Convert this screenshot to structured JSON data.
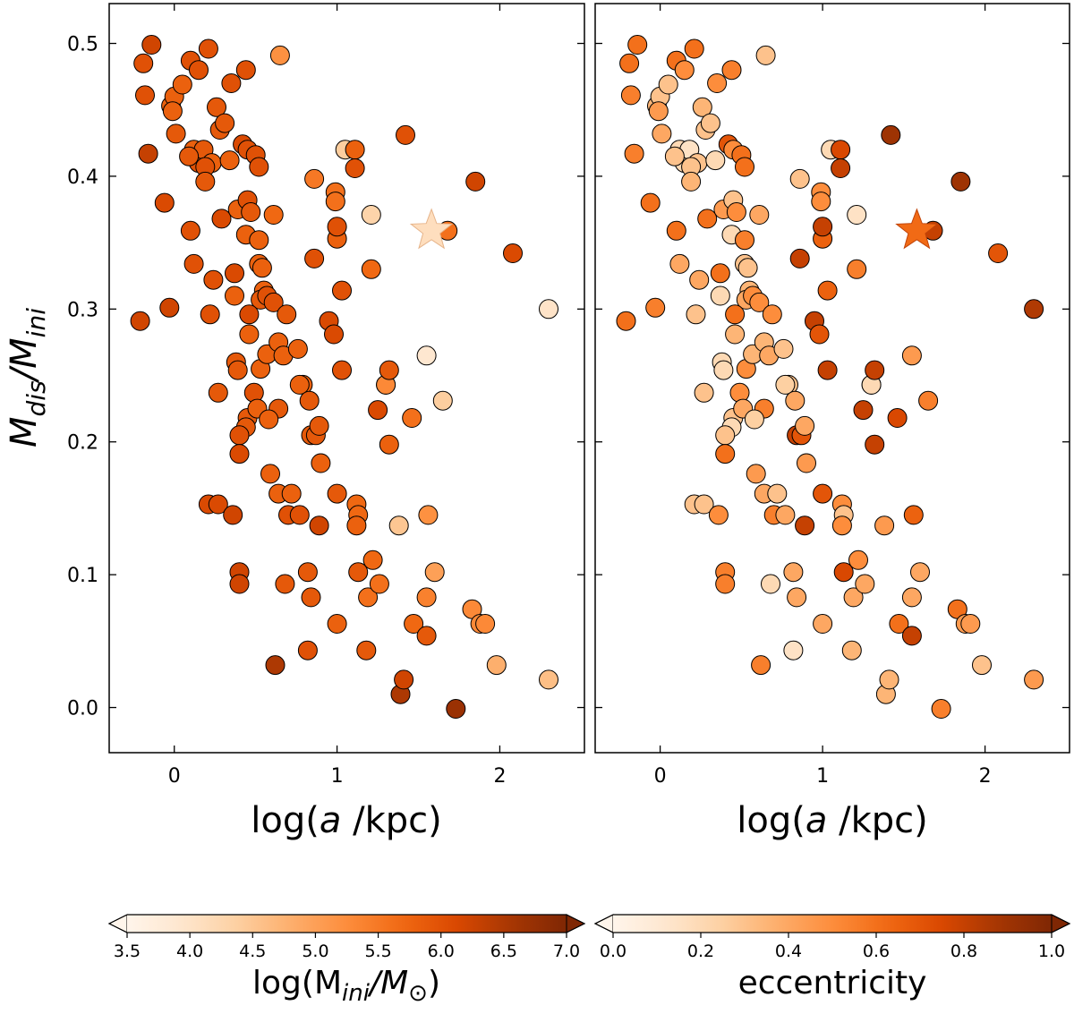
{
  "chart_data": {
    "type": "scatter",
    "xlabel": "log(a /kpc)",
    "ylabel": "M_dis/M_ini",
    "xlim": [
      -0.4,
      2.52
    ],
    "ylim": [
      -0.034,
      0.53
    ],
    "x_ticks": [
      "0",
      "1",
      "2"
    ],
    "y_ticks": [
      "0.0",
      "0.1",
      "0.2",
      "0.3",
      "0.4",
      "0.5"
    ],
    "panels": [
      {
        "name": "left",
        "color_by": "log(M_ini/M_sun)",
        "colorbar_label_main": "log(M",
        "colorbar_label_sub1": "ini",
        "colorbar_label_mid": "/M",
        "colorbar_label_sub2": "⊙",
        "colorbar_label_end": ")",
        "cmin": 3.5,
        "cmax": 7.0,
        "colorbar_ticks": [
          "3.5",
          "4.0",
          "4.5",
          "5.0",
          "5.5",
          "6.0",
          "6.5",
          "7.0"
        ],
        "colorbar_tick_values": [
          3.5,
          4.0,
          4.5,
          5.0,
          5.5,
          6.0,
          6.5,
          7.0
        ],
        "star_color_value": 4.1
      },
      {
        "name": "right",
        "color_by": "eccentricity",
        "colorbar_label": "eccentricity",
        "cmin": 0.0,
        "cmax": 1.0,
        "colorbar_ticks": [
          "0.0",
          "0.2",
          "0.4",
          "0.6",
          "0.8",
          "1.0"
        ],
        "colorbar_tick_values": [
          0.0,
          0.2,
          0.4,
          0.6,
          0.8,
          1.0
        ],
        "star_color_value": 0.62
      }
    ],
    "star_point": {
      "x": 1.58,
      "y": 0.359
    },
    "points": [
      [
        -0.14,
        0.499,
        6.2,
        0.6
      ],
      [
        -0.19,
        0.485,
        6.0,
        0.6
      ],
      [
        -0.18,
        0.461,
        6.0,
        0.55
      ],
      [
        -0.16,
        0.417,
        6.3,
        0.55
      ],
      [
        -0.06,
        0.38,
        6.1,
        0.6
      ],
      [
        -0.03,
        0.301,
        6.2,
        0.55
      ],
      [
        -0.21,
        0.291,
        6.2,
        0.6
      ],
      [
        -0.02,
        0.453,
        5.8,
        0.35
      ],
      [
        0.0,
        0.46,
        5.8,
        0.3
      ],
      [
        -0.01,
        0.449,
        5.8,
        0.45
      ],
      [
        0.05,
        0.469,
        5.8,
        0.3
      ],
      [
        0.01,
        0.432,
        5.9,
        0.4
      ],
      [
        0.1,
        0.487,
        6.0,
        0.6
      ],
      [
        0.15,
        0.48,
        6.0,
        0.5
      ],
      [
        0.21,
        0.496,
        6.0,
        0.6
      ],
      [
        0.12,
        0.42,
        5.8,
        0.2
      ],
      [
        0.15,
        0.41,
        6.0,
        0.2
      ],
      [
        0.18,
        0.42,
        5.9,
        0.15
      ],
      [
        0.09,
        0.415,
        5.9,
        0.3
      ],
      [
        0.23,
        0.41,
        5.8,
        0.3
      ],
      [
        0.19,
        0.407,
        6.0,
        0.3
      ],
      [
        0.28,
        0.435,
        5.9,
        0.3
      ],
      [
        0.26,
        0.452,
        5.9,
        0.35
      ],
      [
        0.31,
        0.44,
        5.9,
        0.3
      ],
      [
        0.19,
        0.396,
        5.9,
        0.35
      ],
      [
        0.34,
        0.412,
        5.8,
        0.2
      ],
      [
        0.35,
        0.47,
        6.0,
        0.5
      ],
      [
        0.44,
        0.48,
        6.0,
        0.55
      ],
      [
        0.1,
        0.359,
        6.0,
        0.6
      ],
      [
        0.12,
        0.334,
        6.0,
        0.4
      ],
      [
        0.24,
        0.322,
        6.0,
        0.4
      ],
      [
        0.22,
        0.296,
        6.0,
        0.3
      ],
      [
        0.29,
        0.368,
        6.1,
        0.6
      ],
      [
        0.39,
        0.375,
        5.8,
        0.45
      ],
      [
        0.37,
        0.327,
        6.1,
        0.6
      ],
      [
        0.37,
        0.31,
        5.8,
        0.2
      ],
      [
        0.42,
        0.424,
        6.1,
        0.7
      ],
      [
        0.45,
        0.42,
        6.0,
        0.5
      ],
      [
        0.5,
        0.416,
        6.0,
        0.6
      ],
      [
        0.52,
        0.407,
        6.0,
        0.6
      ],
      [
        0.45,
        0.382,
        6.0,
        0.3
      ],
      [
        0.47,
        0.373,
        5.9,
        0.5
      ],
      [
        0.44,
        0.356,
        5.8,
        0.2
      ],
      [
        0.52,
        0.352,
        5.8,
        0.55
      ],
      [
        0.52,
        0.334,
        5.8,
        0.3
      ],
      [
        0.54,
        0.331,
        5.8,
        0.3
      ],
      [
        0.55,
        0.314,
        5.8,
        0.35
      ],
      [
        0.53,
        0.307,
        5.9,
        0.4
      ],
      [
        0.57,
        0.31,
        6.0,
        0.5
      ],
      [
        0.46,
        0.296,
        6.1,
        0.6
      ],
      [
        0.61,
        0.305,
        6.0,
        0.5
      ],
      [
        0.61,
        0.371,
        5.7,
        0.4
      ],
      [
        0.46,
        0.281,
        5.8,
        0.35
      ],
      [
        0.38,
        0.26,
        5.9,
        0.2
      ],
      [
        0.39,
        0.254,
        5.9,
        0.2
      ],
      [
        0.27,
        0.237,
        5.9,
        0.3
      ],
      [
        0.49,
        0.237,
        6.0,
        0.5
      ],
      [
        0.45,
        0.218,
        5.9,
        0.3
      ],
      [
        0.44,
        0.211,
        5.9,
        0.2
      ],
      [
        0.51,
        0.225,
        5.8,
        0.4
      ],
      [
        0.53,
        0.255,
        5.8,
        0.5
      ],
      [
        0.57,
        0.266,
        5.8,
        0.35
      ],
      [
        0.64,
        0.275,
        5.8,
        0.35
      ],
      [
        0.67,
        0.265,
        5.8,
        0.4
      ],
      [
        0.64,
        0.225,
        5.9,
        0.55
      ],
      [
        0.4,
        0.205,
        6.0,
        0.3
      ],
      [
        0.4,
        0.191,
        6.1,
        0.6
      ],
      [
        0.58,
        0.217,
        5.8,
        0.25
      ],
      [
        0.69,
        0.296,
        5.9,
        0.5
      ],
      [
        0.76,
        0.27,
        5.8,
        0.3
      ],
      [
        0.79,
        0.243,
        5.8,
        0.3
      ],
      [
        0.77,
        0.243,
        5.8,
        0.25
      ],
      [
        0.83,
        0.231,
        5.9,
        0.4
      ],
      [
        0.84,
        0.205,
        5.9,
        0.8
      ],
      [
        0.87,
        0.205,
        5.9,
        0.7
      ],
      [
        0.89,
        0.212,
        5.9,
        0.4
      ],
      [
        0.9,
        0.184,
        5.8,
        0.45
      ],
      [
        0.95,
        0.291,
        6.1,
        0.8
      ],
      [
        0.98,
        0.281,
        6.1,
        0.7
      ],
      [
        0.21,
        0.153,
        6.1,
        0.3
      ],
      [
        0.27,
        0.153,
        6.1,
        0.3
      ],
      [
        0.36,
        0.145,
        6.2,
        0.5
      ],
      [
        0.59,
        0.176,
        5.8,
        0.45
      ],
      [
        0.64,
        0.161,
        5.8,
        0.4
      ],
      [
        0.72,
        0.161,
        5.8,
        0.3
      ],
      [
        0.7,
        0.145,
        6.0,
        0.55
      ],
      [
        0.77,
        0.145,
        6.0,
        0.4
      ],
      [
        0.89,
        0.137,
        6.2,
        0.8
      ],
      [
        0.4,
        0.102,
        6.2,
        0.55
      ],
      [
        0.4,
        0.093,
        6.2,
        0.55
      ],
      [
        0.68,
        0.093,
        5.9,
        0.2
      ],
      [
        0.82,
        0.102,
        5.9,
        0.4
      ],
      [
        0.84,
        0.083,
        5.9,
        0.4
      ],
      [
        0.82,
        0.043,
        6.0,
        0.15
      ],
      [
        0.62,
        0.032,
        6.5,
        0.55
      ],
      [
        1.0,
        0.161,
        5.9,
        0.7
      ],
      [
        1.0,
        0.063,
        5.8,
        0.4
      ],
      [
        0.86,
        0.338,
        6.0,
        0.8
      ],
      [
        0.86,
        0.398,
        5.5,
        0.3
      ],
      [
        0.99,
        0.388,
        5.6,
        0.5
      ],
      [
        0.99,
        0.381,
        5.6,
        0.5
      ],
      [
        1.0,
        0.353,
        5.8,
        0.65
      ],
      [
        1.0,
        0.362,
        6.0,
        0.8
      ],
      [
        1.03,
        0.314,
        6.0,
        0.65
      ],
      [
        1.03,
        0.254,
        6.0,
        0.8
      ],
      [
        1.05,
        0.42,
        4.4,
        0.2
      ],
      [
        1.11,
        0.42,
        5.8,
        0.75
      ],
      [
        1.11,
        0.406,
        6.0,
        0.8
      ],
      [
        1.21,
        0.371,
        4.3,
        0.15
      ],
      [
        1.21,
        0.33,
        5.7,
        0.55
      ],
      [
        1.12,
        0.153,
        5.7,
        0.5
      ],
      [
        1.13,
        0.145,
        5.7,
        0.3
      ],
      [
        1.12,
        0.137,
        5.8,
        0.5
      ],
      [
        1.13,
        0.102,
        5.9,
        0.75
      ],
      [
        1.22,
        0.111,
        5.7,
        0.5
      ],
      [
        1.19,
        0.083,
        5.6,
        0.4
      ],
      [
        1.18,
        0.043,
        5.9,
        0.35
      ],
      [
        1.25,
        0.224,
        6.1,
        0.8
      ],
      [
        1.26,
        0.093,
        5.6,
        0.4
      ],
      [
        1.3,
        0.243,
        5.2,
        0.2
      ],
      [
        1.3,
        0.243,
        5.3,
        0.2
      ],
      [
        1.32,
        0.254,
        5.9,
        0.8
      ],
      [
        1.32,
        0.198,
        5.8,
        0.8
      ],
      [
        1.42,
        0.431,
        6.0,
        0.9
      ],
      [
        1.46,
        0.218,
        5.6,
        0.75
      ],
      [
        1.47,
        0.063,
        5.7,
        0.6
      ],
      [
        1.39,
        0.01,
        6.5,
        0.35
      ],
      [
        1.41,
        0.021,
        6.2,
        0.35
      ],
      [
        1.38,
        0.137,
        4.5,
        0.45
      ],
      [
        1.55,
        0.265,
        3.9,
        0.45
      ],
      [
        1.55,
        0.083,
        5.4,
        0.4
      ],
      [
        1.56,
        0.145,
        5.2,
        0.65
      ],
      [
        1.55,
        0.054,
        5.9,
        0.8
      ],
      [
        1.6,
        0.102,
        5.0,
        0.4
      ],
      [
        1.65,
        0.231,
        4.4,
        0.55
      ],
      [
        1.68,
        0.359,
        5.6,
        0.8
      ],
      [
        1.73,
        -0.001,
        6.7,
        0.55
      ],
      [
        1.83,
        0.074,
        5.3,
        0.6
      ],
      [
        1.85,
        0.396,
        6.2,
        0.9
      ],
      [
        1.88,
        0.063,
        5.3,
        0.45
      ],
      [
        1.91,
        0.063,
        5.3,
        0.45
      ],
      [
        1.98,
        0.032,
        4.8,
        0.3
      ],
      [
        2.08,
        0.342,
        6.1,
        0.7
      ],
      [
        2.3,
        0.3,
        4.0,
        0.85
      ],
      [
        2.3,
        0.021,
        4.6,
        0.45
      ],
      [
        0.65,
        0.491,
        5.2,
        0.3
      ]
    ]
  }
}
